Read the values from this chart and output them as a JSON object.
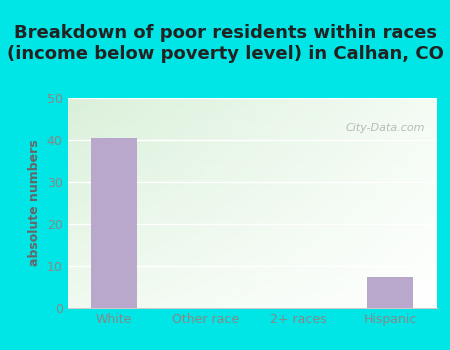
{
  "title": "Breakdown of poor residents within races\n(income below poverty level) in Calhan, CO",
  "categories": [
    "White",
    "Other race",
    "2+ races",
    "Hispanic"
  ],
  "values": [
    40.5,
    0,
    0,
    7.5
  ],
  "bar_color": "#b9a8cc",
  "ylabel": "absolute numbers",
  "ylim": [
    0,
    50
  ],
  "yticks": [
    0,
    10,
    20,
    30,
    40,
    50
  ],
  "bg_outer": "#00e5e5",
  "bg_plot_topleft": "#daf0da",
  "bg_plot_topright": "#f0f8f0",
  "bg_plot_bottom": "#f8fef8",
  "title_fontsize": 13,
  "title_color": "#222222",
  "tick_color": "#888888",
  "ylabel_color": "#666666",
  "watermark": "City-Data.com",
  "watermark_color": "#aaaaaa"
}
